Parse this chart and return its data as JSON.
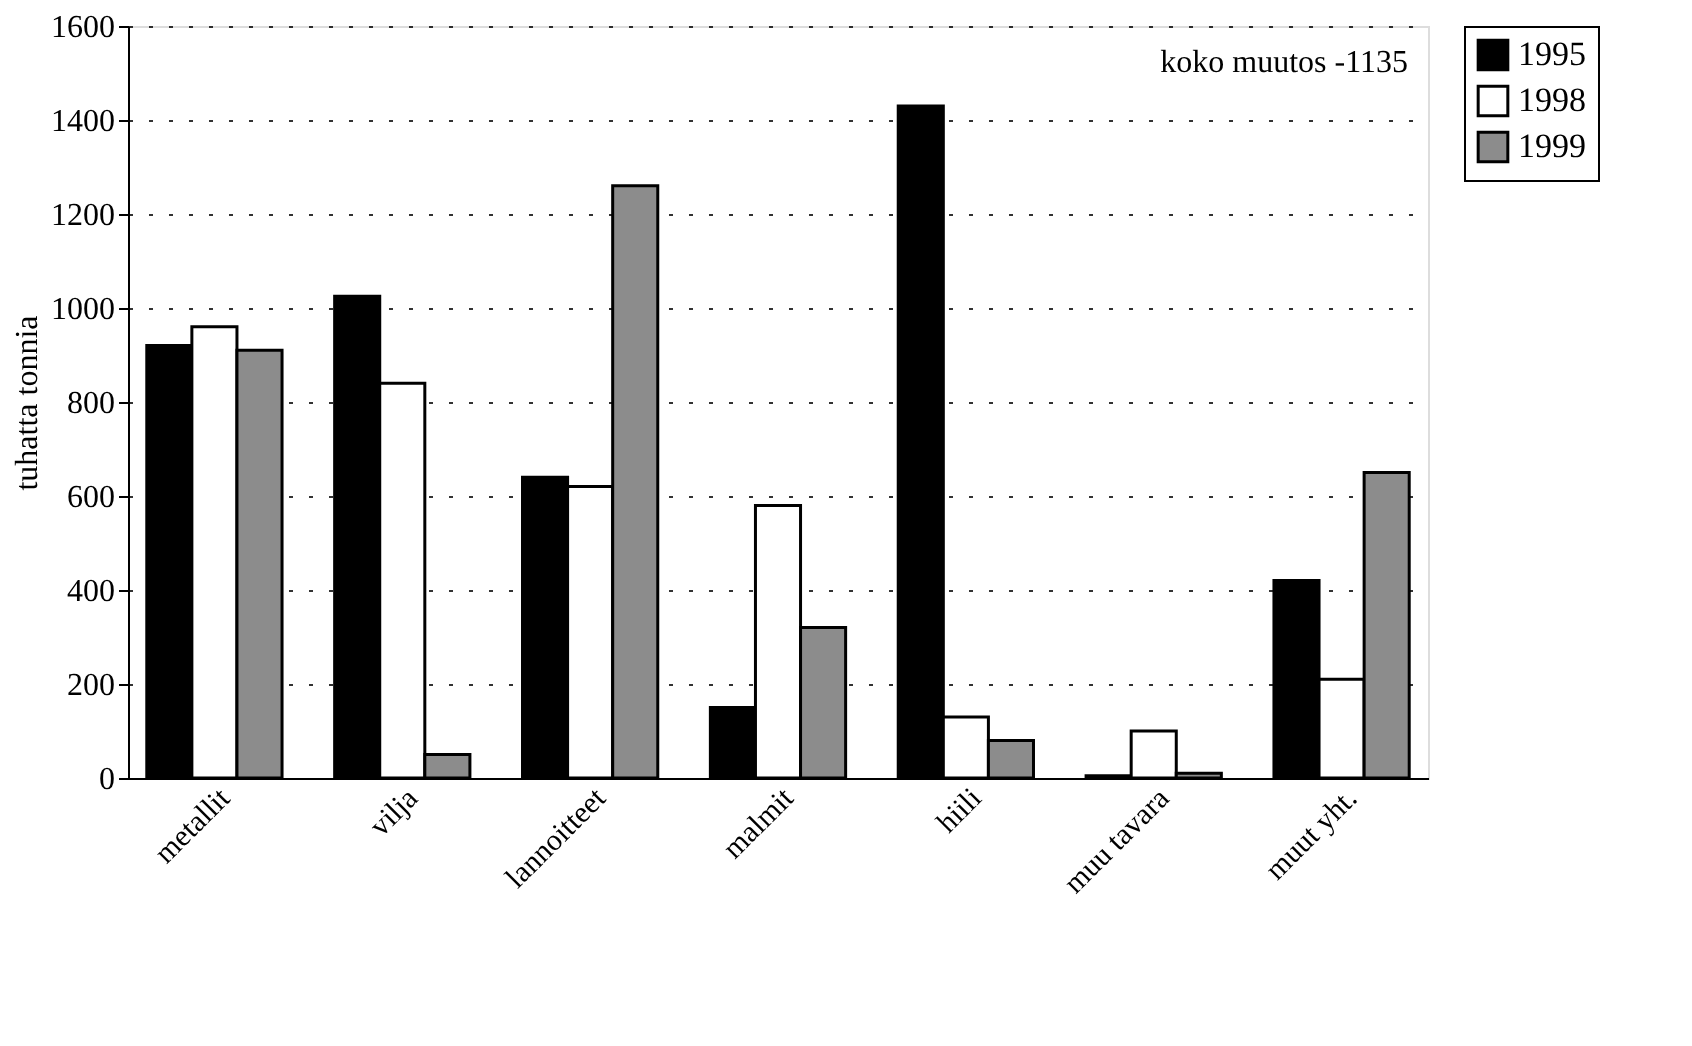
{
  "chart_data": {
    "type": "bar",
    "ylabel": "tuhatta tonnia",
    "categories": [
      "metallit",
      "vilja",
      "lannoitteet",
      "malmit",
      "hiili",
      "muu tavara",
      "muut yht."
    ],
    "series": [
      {
        "name": "1995",
        "color": "#000000",
        "values": [
          920,
          1025,
          640,
          150,
          1430,
          5,
          420
        ]
      },
      {
        "name": "1998",
        "color": "#ffffff",
        "values": [
          960,
          840,
          620,
          580,
          130,
          100,
          210
        ]
      },
      {
        "name": "1999",
        "color": "#8c8c8c",
        "values": [
          910,
          50,
          1260,
          320,
          80,
          10,
          650
        ]
      }
    ],
    "ylim": [
      0,
      1600
    ],
    "yticks": [
      0,
      200,
      400,
      600,
      800,
      1000,
      1200,
      1400,
      1600
    ],
    "grid": "y",
    "legend": "right",
    "annotations": [
      "koko muutos -1135"
    ]
  }
}
